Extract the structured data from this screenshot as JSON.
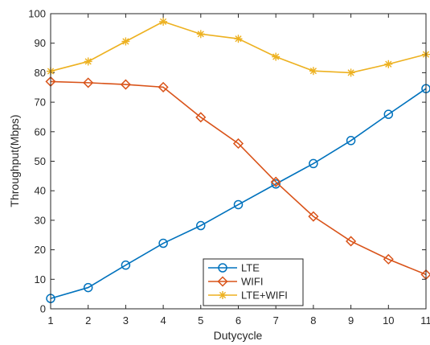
{
  "chart_data": {
    "type": "line",
    "xlabel": "Dutycycle",
    "ylabel": "Throughput(Mbps)",
    "xlim": [
      1,
      11
    ],
    "ylim": [
      0,
      100
    ],
    "x_ticks": [
      "1",
      "2",
      "3",
      "4",
      "5",
      "6",
      "7",
      "8",
      "9",
      "10",
      "11"
    ],
    "y_ticks": [
      "0",
      "10",
      "20",
      "30",
      "40",
      "50",
      "60",
      "70",
      "80",
      "90",
      "100"
    ],
    "grid": false,
    "legend_position": "bottom-center",
    "x": [
      1,
      2,
      3,
      4,
      5,
      6,
      7,
      8,
      9,
      10,
      11
    ],
    "series": [
      {
        "name": "LTE",
        "color": "#0072BD",
        "marker": "circle",
        "values": [
          3.5,
          7.2,
          14.8,
          22.2,
          28.2,
          35.3,
          42.3,
          49.2,
          57.0,
          65.9,
          74.6
        ]
      },
      {
        "name": "WIFI",
        "color": "#D95319",
        "marker": "diamond",
        "values": [
          77.0,
          76.6,
          76.0,
          75.1,
          64.9,
          56.0,
          43.0,
          31.3,
          22.9,
          16.8,
          11.6
        ]
      },
      {
        "name": "LTE+WIFI",
        "color": "#EDB120",
        "marker": "star",
        "values": [
          80.5,
          83.8,
          90.6,
          97.3,
          93.1,
          91.5,
          85.4,
          80.6,
          80.0,
          82.9,
          86.2
        ]
      }
    ]
  }
}
